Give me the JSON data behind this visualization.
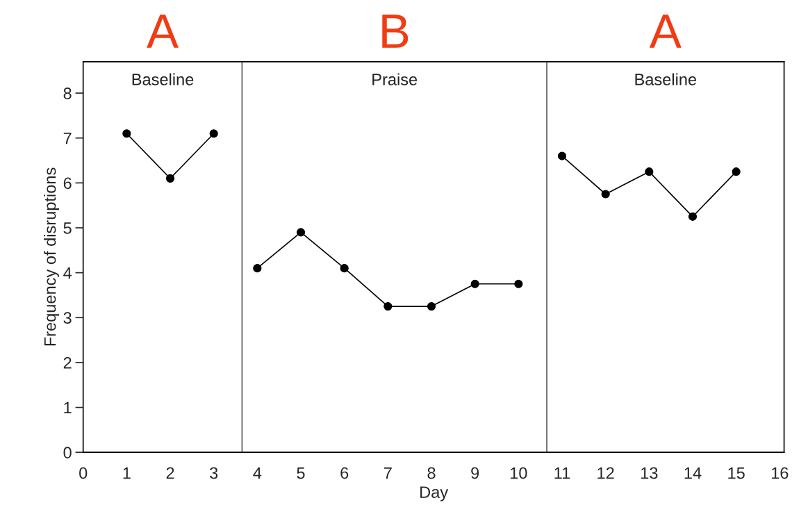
{
  "chart_data": {
    "type": "line",
    "xlabel": "Day",
    "ylabel": "Frequency of disruptions",
    "xlim": [
      0,
      16.1
    ],
    "ylim": [
      0,
      8.7
    ],
    "xticks": [
      0,
      1,
      2,
      3,
      4,
      5,
      6,
      7,
      8,
      9,
      10,
      11,
      12,
      13,
      14,
      15,
      16
    ],
    "yticks": [
      0,
      1,
      2,
      3,
      4,
      5,
      6,
      7,
      8
    ],
    "marker": "circle",
    "line_style": "solid",
    "grid": false,
    "legend": false,
    "series": [
      {
        "color": "#000000",
        "x": [
          1,
          2,
          3
        ],
        "values": [
          7.1,
          6.1,
          7.1
        ]
      },
      {
        "color": "#000000",
        "x": [
          4,
          5,
          6,
          7,
          8,
          9,
          10
        ],
        "values": [
          4.1,
          4.9,
          4.1,
          3.25,
          3.25,
          3.75,
          3.75
        ]
      },
      {
        "color": "#000000",
        "x": [
          11,
          12,
          13,
          14,
          15
        ],
        "values": [
          6.6,
          5.75,
          6.25,
          5.25,
          6.25
        ]
      }
    ],
    "ref_lines": [
      {
        "axis": "x",
        "value": 3.65,
        "color": "#555555"
      },
      {
        "axis": "x",
        "value": 10.65,
        "color": "#555555"
      }
    ],
    "annotations": [
      "A",
      "B",
      "A",
      "Baseline",
      "Praise",
      "Baseline"
    ]
  }
}
